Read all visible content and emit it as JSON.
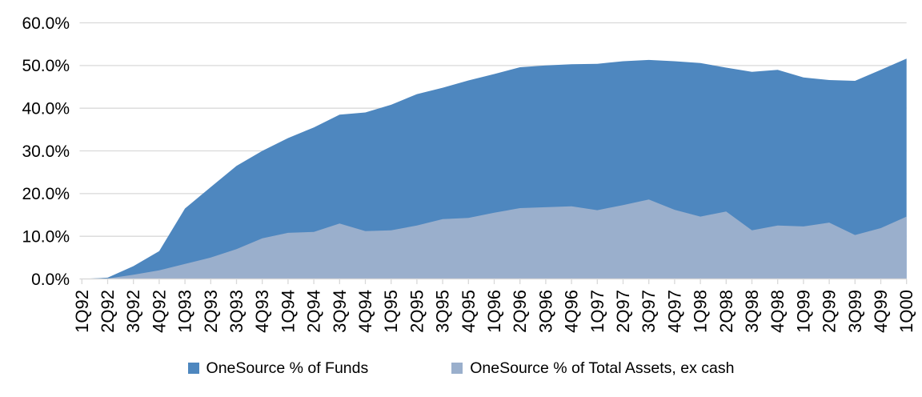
{
  "chart_data": {
    "type": "area",
    "overlay": true,
    "categories": [
      "1Q92",
      "2Q92",
      "3Q92",
      "4Q92",
      "1Q93",
      "2Q93",
      "3Q93",
      "4Q93",
      "1Q94",
      "2Q94",
      "3Q94",
      "4Q94",
      "1Q95",
      "2Q95",
      "3Q95",
      "4Q95",
      "1Q96",
      "2Q96",
      "3Q96",
      "4Q96",
      "1Q97",
      "2Q97",
      "3Q97",
      "4Q97",
      "1Q98",
      "2Q98",
      "3Q98",
      "4Q98",
      "1Q99",
      "2Q99",
      "3Q99",
      "4Q99",
      "1Q00"
    ],
    "series": [
      {
        "name": "OneSource % of Funds",
        "color": "#4E87BF",
        "values": [
          0,
          0.3,
          3.0,
          6.5,
          16.5,
          21.5,
          26.5,
          30.0,
          33.0,
          35.5,
          38.5,
          39.0,
          40.8,
          43.3,
          44.8,
          46.5,
          48.0,
          49.6,
          50.0,
          50.3,
          50.4,
          51.0,
          51.3,
          51.0,
          50.6,
          49.5,
          48.5,
          49.0,
          47.2,
          46.6,
          46.4,
          49.0,
          51.6
        ]
      },
      {
        "name": "OneSource % of Total Assets, ex cash",
        "color": "#9AAFCC",
        "values": [
          0,
          0.1,
          1.0,
          2.0,
          3.5,
          5.0,
          7.0,
          9.5,
          10.8,
          11.0,
          13.0,
          11.2,
          11.4,
          12.5,
          14.0,
          14.3,
          15.5,
          16.6,
          16.8,
          17.0,
          16.1,
          17.3,
          18.6,
          16.2,
          14.6,
          15.8,
          11.4,
          12.5,
          12.3,
          13.2,
          10.3,
          11.9,
          14.6
        ]
      }
    ],
    "title": "",
    "xlabel": "",
    "ylabel": "",
    "ylim": [
      0,
      60
    ],
    "ytick_step": 10,
    "ytick_labels": [
      "0.0%",
      "10.0%",
      "20.0%",
      "30.0%",
      "40.0%",
      "50.0%",
      "60.0%"
    ],
    "grid": true,
    "legend_position": "bottom"
  },
  "colors": {
    "grid": "#D9D9D9",
    "axis": "#D9D9D9",
    "tick": "#D9D9D9",
    "text": "#000000"
  }
}
